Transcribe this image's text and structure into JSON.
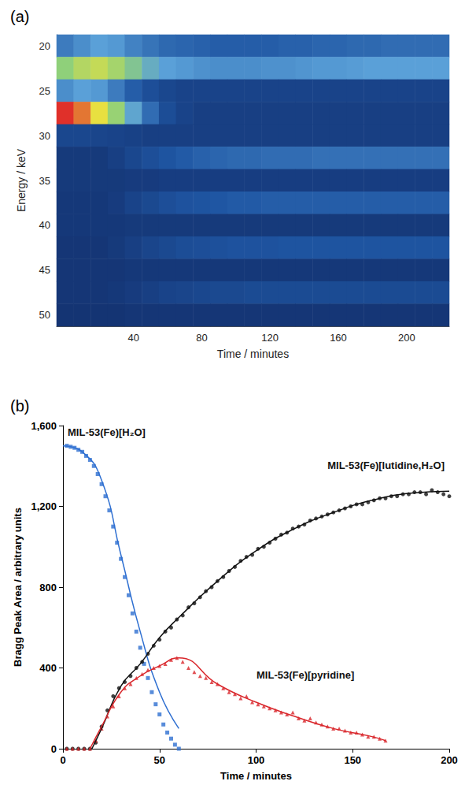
{
  "chart_data": [
    {
      "type": "heatmap",
      "panel_label": "(a)",
      "x_label": "Time / minutes",
      "y_label": "Energy / keV",
      "x": [
        null,
        null,
        null,
        null,
        "40",
        null,
        null,
        null,
        "80",
        null,
        null,
        null,
        "120",
        null,
        null,
        null,
        "160",
        null,
        null,
        null,
        "200",
        null,
        null
      ],
      "categories": [
        "20",
        null,
        "25",
        null,
        "30",
        null,
        "35",
        null,
        "40",
        null,
        "45",
        null,
        "50"
      ],
      "color_range": [
        0,
        100
      ],
      "values": [
        [
          30,
          35,
          40,
          38,
          32,
          28,
          25,
          24,
          23,
          22,
          22,
          22,
          22,
          23,
          23,
          24,
          24,
          25,
          25,
          26,
          26,
          26,
          26
        ],
        [
          60,
          68,
          72,
          65,
          55,
          45,
          40,
          38,
          36,
          35,
          35,
          35,
          36,
          36,
          37,
          38,
          38,
          39,
          40,
          40,
          40,
          40,
          40
        ],
        [
          35,
          40,
          38,
          30,
          22,
          16,
          12,
          10,
          10,
          10,
          10,
          10,
          10,
          10,
          10,
          10,
          10,
          10,
          10,
          10,
          10,
          10,
          10
        ],
        [
          100,
          92,
          80,
          62,
          42,
          26,
          15,
          10,
          8,
          8,
          8,
          8,
          8,
          8,
          8,
          8,
          8,
          8,
          8,
          8,
          8,
          8,
          8
        ],
        [
          12,
          12,
          11,
          10,
          9,
          8,
          8,
          8,
          8,
          8,
          8,
          8,
          8,
          8,
          8,
          8,
          8,
          8,
          8,
          8,
          8,
          8,
          8
        ],
        [
          5,
          5,
          5,
          8,
          12,
          16,
          19,
          21,
          23,
          24,
          25,
          25,
          26,
          26,
          26,
          27,
          27,
          27,
          27,
          27,
          27,
          27,
          27
        ],
        [
          5,
          5,
          5,
          5,
          6,
          6,
          7,
          7,
          7,
          7,
          7,
          7,
          7,
          7,
          7,
          7,
          7,
          7,
          7,
          7,
          7,
          7,
          7
        ],
        [
          4,
          4,
          4,
          6,
          10,
          13,
          16,
          18,
          19,
          20,
          21,
          21,
          22,
          22,
          22,
          22,
          22,
          22,
          22,
          22,
          22,
          22,
          22
        ],
        [
          4,
          4,
          4,
          4,
          5,
          5,
          5,
          5,
          5,
          5,
          5,
          5,
          5,
          5,
          5,
          5,
          5,
          5,
          5,
          5,
          5,
          5,
          5
        ],
        [
          3,
          3,
          3,
          5,
          8,
          11,
          13,
          15,
          16,
          17,
          18,
          18,
          18,
          19,
          19,
          19,
          19,
          19,
          19,
          19,
          19,
          19,
          19
        ],
        [
          3,
          3,
          3,
          3,
          4,
          4,
          4,
          4,
          4,
          4,
          4,
          4,
          4,
          4,
          4,
          4,
          4,
          4,
          4,
          4,
          4,
          4,
          4
        ],
        [
          3,
          3,
          3,
          4,
          6,
          8,
          10,
          11,
          12,
          13,
          13,
          14,
          14,
          14,
          14,
          14,
          14,
          14,
          14,
          14,
          14,
          14,
          14
        ],
        [
          2,
          2,
          2,
          2,
          3,
          3,
          3,
          3,
          3,
          3,
          3,
          3,
          3,
          3,
          3,
          3,
          3,
          3,
          3,
          3,
          3,
          3,
          3
        ]
      ]
    },
    {
      "type": "scatter",
      "panel_label": "(b)",
      "x_label": "Time / minutes",
      "y_label": "Bragg Peak Area / arbitrary units",
      "xlim": [
        0,
        200
      ],
      "xticks": [
        0,
        50,
        100,
        150,
        200
      ],
      "ylim": [
        0,
        1600
      ],
      "yticks": [
        0,
        400,
        800,
        1200,
        1600
      ],
      "grid": false,
      "series": [
        {
          "name": "MIL-53(Fe)[H₂O]",
          "color": "#2e6fd1",
          "marker": "square",
          "values": [
            [
              2,
              1500
            ],
            [
              4,
              1495
            ],
            [
              6,
              1490
            ],
            [
              8,
              1480
            ],
            [
              10,
              1470
            ],
            [
              12,
              1450
            ],
            [
              14,
              1430
            ],
            [
              16,
              1400
            ],
            [
              18,
              1360
            ],
            [
              20,
              1310
            ],
            [
              22,
              1250
            ],
            [
              24,
              1180
            ],
            [
              26,
              1100
            ],
            [
              28,
              1020
            ],
            [
              30,
              940
            ],
            [
              32,
              850
            ],
            [
              34,
              760
            ],
            [
              36,
              670
            ],
            [
              38,
              580
            ],
            [
              40,
              500
            ],
            [
              42,
              420
            ],
            [
              44,
              350
            ],
            [
              46,
              280
            ],
            [
              48,
              220
            ],
            [
              50,
              170
            ],
            [
              52,
              120
            ],
            [
              54,
              80
            ],
            [
              56,
              50
            ],
            [
              58,
              20
            ],
            [
              60,
              0
            ]
          ],
          "fit": [
            [
              0,
              1500
            ],
            [
              10,
              1470
            ],
            [
              20,
              1330
            ],
            [
              30,
              960
            ],
            [
              40,
              580
            ],
            [
              50,
              280
            ],
            [
              60,
              100
            ]
          ]
        },
        {
          "name": "MIL-53(Fe)[lutidine,H₂O]",
          "color": "#111111",
          "marker": "circle",
          "values": [
            [
              2,
              0
            ],
            [
              5,
              0
            ],
            [
              8,
              0
            ],
            [
              11,
              0
            ],
            [
              14,
              0
            ],
            [
              17,
              30
            ],
            [
              20,
              110
            ],
            [
              23,
              190
            ],
            [
              26,
              260
            ],
            [
              29,
              300
            ],
            [
              32,
              330
            ],
            [
              35,
              360
            ],
            [
              38,
              400
            ],
            [
              41,
              430
            ],
            [
              44,
              470
            ],
            [
              47,
              510
            ],
            [
              50,
              540
            ],
            [
              53,
              580
            ],
            [
              56,
              600
            ],
            [
              59,
              640
            ],
            [
              62,
              660
            ],
            [
              65,
              700
            ],
            [
              68,
              720
            ],
            [
              71,
              750
            ],
            [
              74,
              780
            ],
            [
              77,
              800
            ],
            [
              80,
              830
            ],
            [
              83,
              850
            ],
            [
              86,
              880
            ],
            [
              89,
              900
            ],
            [
              92,
              930
            ],
            [
              95,
              950
            ],
            [
              98,
              960
            ],
            [
              101,
              990
            ],
            [
              104,
              1000
            ],
            [
              107,
              1020
            ],
            [
              110,
              1040
            ],
            [
              113,
              1060
            ],
            [
              116,
              1070
            ],
            [
              119,
              1090
            ],
            [
              122,
              1100
            ],
            [
              125,
              1110
            ],
            [
              128,
              1130
            ],
            [
              131,
              1140
            ],
            [
              134,
              1150
            ],
            [
              137,
              1160
            ],
            [
              140,
              1170
            ],
            [
              143,
              1180
            ],
            [
              146,
              1190
            ],
            [
              149,
              1200
            ],
            [
              152,
              1210
            ],
            [
              155,
              1210
            ],
            [
              158,
              1220
            ],
            [
              161,
              1230
            ],
            [
              164,
              1240
            ],
            [
              167,
              1240
            ],
            [
              170,
              1250
            ],
            [
              173,
              1250
            ],
            [
              176,
              1260
            ],
            [
              179,
              1260
            ],
            [
              182,
              1270
            ],
            [
              185,
              1270
            ],
            [
              188,
              1260
            ],
            [
              191,
              1280
            ],
            [
              194,
              1270
            ],
            [
              197,
              1260
            ],
            [
              200,
              1250
            ]
          ],
          "fit": [
            [
              15,
              0
            ],
            [
              20,
              100
            ],
            [
              30,
              310
            ],
            [
              40,
              420
            ],
            [
              50,
              550
            ],
            [
              60,
              650
            ],
            [
              80,
              830
            ],
            [
              100,
              980
            ],
            [
              120,
              1090
            ],
            [
              140,
              1170
            ],
            [
              160,
              1230
            ],
            [
              180,
              1265
            ],
            [
              200,
              1275
            ]
          ]
        },
        {
          "name": "MIL-53(Fe)[pyridine]",
          "color": "#d9262b",
          "marker": "triangle",
          "values": [
            [
              2,
              0
            ],
            [
              5,
              0
            ],
            [
              8,
              0
            ],
            [
              11,
              0
            ],
            [
              14,
              0
            ],
            [
              17,
              40
            ],
            [
              20,
              100
            ],
            [
              23,
              160
            ],
            [
              26,
              210
            ],
            [
              29,
              260
            ],
            [
              32,
              300
            ],
            [
              35,
              320
            ],
            [
              38,
              350
            ],
            [
              41,
              370
            ],
            [
              44,
              390
            ],
            [
              47,
              400
            ],
            [
              50,
              410
            ],
            [
              53,
              420
            ],
            [
              56,
              440
            ],
            [
              59,
              450
            ],
            [
              62,
              430
            ],
            [
              65,
              400
            ],
            [
              68,
              380
            ],
            [
              71,
              360
            ],
            [
              74,
              350
            ],
            [
              77,
              330
            ],
            [
              80,
              320
            ],
            [
              83,
              300
            ],
            [
              86,
              280
            ],
            [
              89,
              270
            ],
            [
              92,
              250
            ],
            [
              95,
              260
            ],
            [
              98,
              230
            ],
            [
              101,
              220
            ],
            [
              104,
              210
            ],
            [
              107,
              200
            ],
            [
              110,
              190
            ],
            [
              113,
              180
            ],
            [
              116,
              170
            ],
            [
              119,
              180
            ],
            [
              122,
              150
            ],
            [
              125,
              140
            ],
            [
              128,
              150
            ],
            [
              131,
              130
            ],
            [
              134,
              120
            ],
            [
              137,
              110
            ],
            [
              140,
              100
            ],
            [
              143,
              100
            ],
            [
              146,
              90
            ],
            [
              149,
              80
            ],
            [
              152,
              80
            ],
            [
              155,
              70
            ],
            [
              158,
              60
            ],
            [
              161,
              60
            ],
            [
              164,
              50
            ],
            [
              167,
              40
            ]
          ],
          "fit": [
            [
              14,
              0
            ],
            [
              20,
              110
            ],
            [
              30,
              280
            ],
            [
              40,
              360
            ],
            [
              50,
              410
            ],
            [
              60,
              450
            ],
            [
              80,
              320
            ],
            [
              100,
              230
            ],
            [
              120,
              160
            ],
            [
              140,
              100
            ],
            [
              160,
              60
            ],
            [
              167,
              40
            ]
          ]
        }
      ]
    }
  ]
}
